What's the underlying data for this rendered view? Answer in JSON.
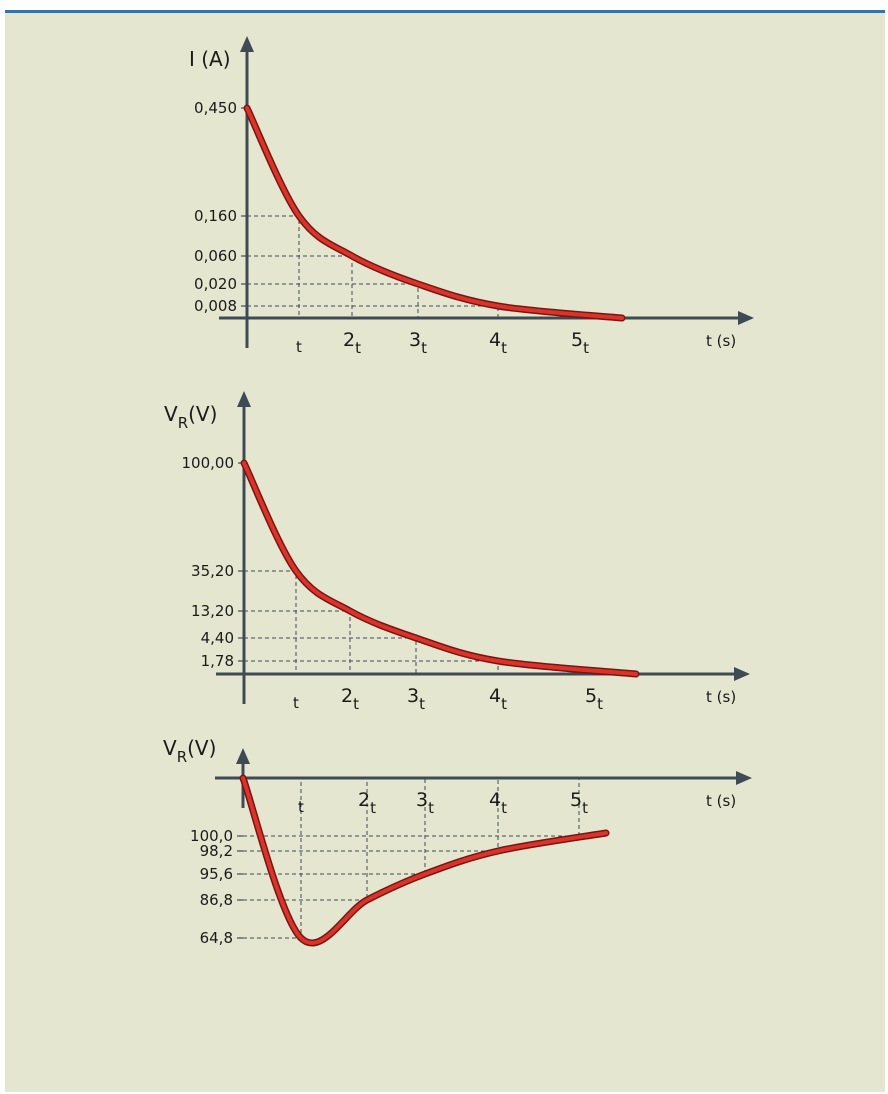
{
  "colors": {
    "background": "#e5e6cf",
    "top_border": "#3a6fa8",
    "axis": "#3e4a54",
    "curve": "#d9342c"
  },
  "chart_data": [
    {
      "type": "line",
      "title": "",
      "ylabel": "I (A)",
      "xlabel": "t (s)",
      "ylim": [
        0,
        0.45
      ],
      "x_ticks": [
        {
          "base": "t",
          "sub": ""
        },
        {
          "base": "2",
          "sub": "t"
        },
        {
          "base": "3",
          "sub": "t"
        },
        {
          "base": "4",
          "sub": "t"
        },
        {
          "base": "5",
          "sub": "t"
        }
      ],
      "y_tick_labels": [
        "0,450",
        "0,160",
        "0,060",
        "0,020",
        "0,008"
      ],
      "series": [
        {
          "x": [
            0,
            1,
            2,
            3,
            4,
            5
          ],
          "y": [
            0.45,
            0.16,
            0.06,
            0.02,
            0.008,
            0
          ]
        }
      ],
      "grid": false
    },
    {
      "type": "line",
      "title": "",
      "ylabel": {
        "base": "V",
        "sub": "R",
        "unit": "(V)"
      },
      "xlabel": "t (s)",
      "ylim": [
        0,
        100
      ],
      "x_ticks": [
        {
          "base": "t",
          "sub": ""
        },
        {
          "base": "2",
          "sub": "t"
        },
        {
          "base": "3",
          "sub": "t"
        },
        {
          "base": "4",
          "sub": "t"
        },
        {
          "base": "5",
          "sub": "t"
        }
      ],
      "y_tick_labels": [
        "100,00",
        "35,20",
        "13,20",
        "4,40",
        "1,78"
      ],
      "series": [
        {
          "x": [
            0,
            1,
            2,
            3,
            4,
            5
          ],
          "y": [
            100,
            35.2,
            13.2,
            4.4,
            1.78,
            0
          ]
        }
      ],
      "grid": false
    },
    {
      "type": "line",
      "title": "",
      "ylabel": {
        "base": "V",
        "sub": "R",
        "unit": "(V)"
      },
      "xlabel": "t (s)",
      "ylim": [
        0,
        100
      ],
      "x_ticks": [
        {
          "base": "t",
          "sub": ""
        },
        {
          "base": "2",
          "sub": "t"
        },
        {
          "base": "3",
          "sub": "t"
        },
        {
          "base": "4",
          "sub": "t"
        },
        {
          "base": "5",
          "sub": "t"
        }
      ],
      "y_tick_labels": [
        "100,0",
        "98,2",
        "95,6",
        "86,8",
        "64,8"
      ],
      "series": [
        {
          "x": [
            0,
            1,
            2,
            3,
            4,
            5
          ],
          "y": [
            0,
            64.8,
            86.8,
            95.6,
            98.2,
            100
          ]
        }
      ],
      "grid": false
    }
  ]
}
